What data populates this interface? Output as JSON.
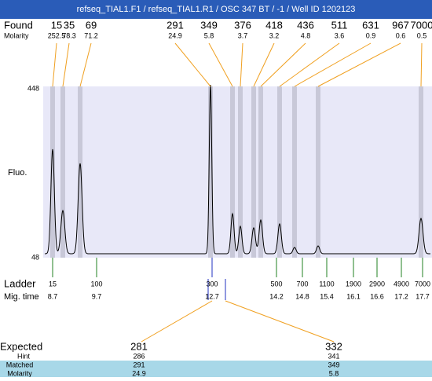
{
  "header": {
    "title": "refseq_TIAL1.F1 / refseq_TIAL1.R1 / OSC 347 BT / -1 / Well ID 1202123"
  },
  "found": {
    "label": "Found",
    "molarity_label": "Molarity",
    "sizes": [
      "15",
      "35",
      "69",
      "291",
      "349",
      "376",
      "418",
      "436",
      "511",
      "631",
      "967",
      "7000"
    ],
    "molarities": [
      "252.5",
      "78.3",
      "71.2",
      "24.9",
      "5.8",
      "3.7",
      "3.2",
      "4.8",
      "3.6",
      "0.9",
      "0.6",
      "0.5"
    ]
  },
  "y_axis": {
    "label": "Fluo.",
    "top": "448",
    "bottom": "48"
  },
  "ladder": {
    "label": "Ladder",
    "time_label": "Mig. time",
    "sizes": [
      "15",
      "100",
      "300",
      "500",
      "700",
      "1100",
      "1900",
      "2900",
      "4900",
      "7000"
    ],
    "times": [
      "8.7",
      "9.7",
      "12.7",
      "14.2",
      "14.8",
      "15.4",
      "16.1",
      "16.6",
      "17.2",
      "17.7"
    ]
  },
  "expected": {
    "label": "Expected",
    "hint_label": "Hint",
    "matched_label": "Matched",
    "molarity_label": "Molarity",
    "columns": [
      {
        "expected": "281",
        "hint": "286",
        "matched": "291",
        "molarity": "24.9"
      },
      {
        "expected": "332",
        "hint": "341",
        "matched": "349",
        "molarity": "5.8"
      }
    ]
  }
}
